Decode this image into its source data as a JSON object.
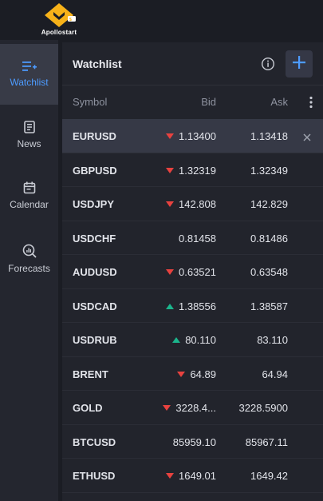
{
  "brand": {
    "name": "Apollostart",
    "accent": "#f7b219"
  },
  "sidebar": {
    "items": [
      {
        "label": "Watchlist",
        "icon": "watchlist-icon",
        "active": true
      },
      {
        "label": "News",
        "icon": "news-icon",
        "active": false
      },
      {
        "label": "Calendar",
        "icon": "calendar-icon",
        "active": false
      },
      {
        "label": "Forecasts",
        "icon": "forecasts-icon",
        "active": false
      }
    ]
  },
  "watchlist": {
    "title": "Watchlist",
    "columns": {
      "symbol": "Symbol",
      "bid": "Bid",
      "ask": "Ask"
    },
    "rows": [
      {
        "symbol": "EURUSD",
        "bid": "1.13400",
        "ask": "1.13418",
        "trend": "down",
        "selected": true
      },
      {
        "symbol": "GBPUSD",
        "bid": "1.32319",
        "ask": "1.32349",
        "trend": "down"
      },
      {
        "symbol": "USDJPY",
        "bid": "142.808",
        "ask": "142.829",
        "trend": "down"
      },
      {
        "symbol": "USDCHF",
        "bid": "0.81458",
        "ask": "0.81486",
        "trend": "none"
      },
      {
        "symbol": "AUDUSD",
        "bid": "0.63521",
        "ask": "0.63548",
        "trend": "down"
      },
      {
        "symbol": "USDCAD",
        "bid": "1.38556",
        "ask": "1.38587",
        "trend": "up"
      },
      {
        "symbol": "USDRUB",
        "bid": "80.110",
        "ask": "83.110",
        "trend": "up"
      },
      {
        "symbol": "BRENT",
        "bid": "64.89",
        "ask": "64.94",
        "trend": "down"
      },
      {
        "symbol": "GOLD",
        "bid": "3228.4...",
        "ask": "3228.5900",
        "trend": "down"
      },
      {
        "symbol": "BTCUSD",
        "bid": "85959.10",
        "ask": "85967.11",
        "trend": "none"
      },
      {
        "symbol": "ETHUSD",
        "bid": "1649.01",
        "ask": "1649.42",
        "trend": "down"
      }
    ]
  },
  "colors": {
    "up": "#1bb58c",
    "down": "#e8423f",
    "accent": "#4d9bff"
  }
}
